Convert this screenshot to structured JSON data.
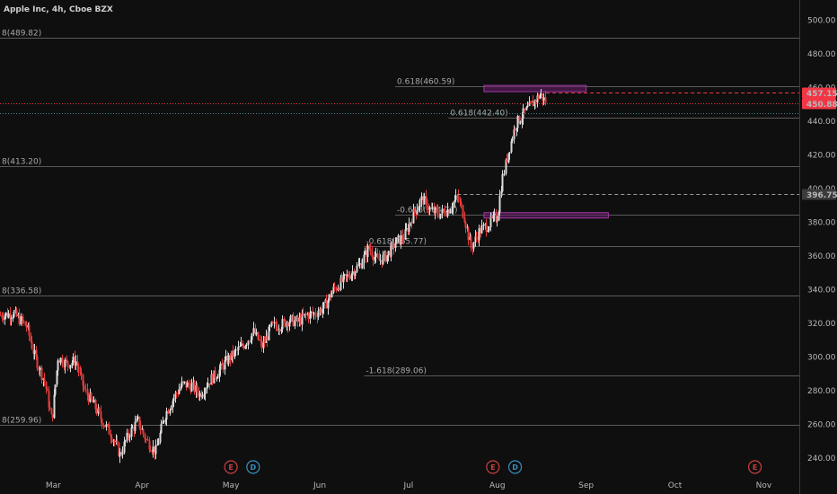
{
  "title": "Apple Inc, 4h, Cboe BZX",
  "colors": {
    "background": "#0f0f0f",
    "grid": "#2a2a2a",
    "up": "#d9d9d9",
    "down": "#e03b3b",
    "fib_line": "#5a5a5a",
    "zone": "#6b1f6e",
    "zone_border": "#a33aa6",
    "price_red": "#f23645",
    "price_gray": "#9a9a9a",
    "earnings": "#c94040",
    "dividend": "#3a8fc2"
  },
  "chart_data": {
    "type": "candlestick",
    "x_axis": {
      "ticks": [
        {
          "label": "Mar",
          "pos": 2.0
        },
        {
          "label": "Apr",
          "pos": 3.0
        },
        {
          "label": "May",
          "pos": 4.0
        },
        {
          "label": "Jun",
          "pos": 5.0
        },
        {
          "label": "Jul",
          "pos": 6.0
        },
        {
          "label": "Aug",
          "pos": 7.0
        },
        {
          "label": "Sep",
          "pos": 8.0
        },
        {
          "label": "Oct",
          "pos": 9.0
        },
        {
          "label": "Nov",
          "pos": 10.0
        }
      ],
      "range": [
        1.4,
        10.4
      ]
    },
    "y_axis": {
      "ticks": [
        "500.00",
        "480.00",
        "460.00",
        "440.00",
        "420.00",
        "400.00",
        "380.00",
        "360.00",
        "340.00",
        "320.00",
        "300.00",
        "280.00",
        "260.00",
        "240.00"
      ],
      "range": [
        230,
        512
      ],
      "side": "right"
    },
    "fib_levels": [
      {
        "label": "8(489.82)",
        "value": 489.82,
        "start": 1.4
      },
      {
        "label": "0.618(460.59)",
        "value": 460.59,
        "start": 5.85
      },
      {
        "label": "0.618(442.40)",
        "value": 442.4,
        "start": 6.45
      },
      {
        "label": "8(413.20)",
        "value": 413.2,
        "start": 1.4
      },
      {
        "label": "-0.618(384.73)",
        "value": 384.73,
        "start": 5.85
      },
      {
        "label": "-0.618(365.77)",
        "value": 365.77,
        "start": 5.5
      },
      {
        "label": "8(336.58)",
        "value": 336.58,
        "start": 1.4
      },
      {
        "label": "-1.618(289.06)",
        "value": 289.06,
        "start": 5.5
      },
      {
        "label": "8(259.96)",
        "value": 259.96,
        "start": 1.4
      }
    ],
    "zones": [
      {
        "x0": 6.85,
        "x1": 8.0,
        "y0": 457.6,
        "y1": 461.3
      },
      {
        "x0": 6.85,
        "x1": 8.25,
        "y0": 382.6,
        "y1": 385.8
      }
    ],
    "price_lines": [
      {
        "value": 457.15,
        "label": "457.15",
        "style": "dashed",
        "color": "price_red",
        "start": 7.55
      },
      {
        "value": 450.88,
        "label": "450.88",
        "style": "dotted",
        "color": "price_red",
        "start": 1.4
      },
      {
        "value": 396.75,
        "label": "396.75",
        "style": "dashed",
        "color": "price_gray",
        "start": 6.55
      }
    ],
    "extra_line": {
      "value": 444.8,
      "style": "dotted",
      "color": "#3d8a8e"
    },
    "events": [
      {
        "type": "E",
        "pos": 4.0
      },
      {
        "type": "D",
        "pos": 4.25
      },
      {
        "type": "E",
        "pos": 6.95
      },
      {
        "type": "D",
        "pos": 7.2
      },
      {
        "type": "E",
        "pos": 9.9
      }
    ],
    "path": [
      [
        1.4,
        325
      ],
      [
        1.55,
        326
      ],
      [
        1.7,
        318
      ],
      [
        1.78,
        302
      ],
      [
        1.9,
        285
      ],
      [
        1.98,
        262
      ],
      [
        2.05,
        300
      ],
      [
        2.15,
        296
      ],
      [
        2.25,
        298
      ],
      [
        2.35,
        280
      ],
      [
        2.45,
        272
      ],
      [
        2.55,
        262
      ],
      [
        2.65,
        254
      ],
      [
        2.75,
        242
      ],
      [
        2.85,
        255
      ],
      [
        2.95,
        262
      ],
      [
        3.05,
        250
      ],
      [
        3.15,
        244
      ],
      [
        3.25,
        265
      ],
      [
        3.35,
        276
      ],
      [
        3.45,
        284
      ],
      [
        3.55,
        283
      ],
      [
        3.65,
        278
      ],
      [
        3.75,
        286
      ],
      [
        3.85,
        291
      ],
      [
        3.95,
        298
      ],
      [
        4.05,
        303
      ],
      [
        4.15,
        308
      ],
      [
        4.25,
        315
      ],
      [
        4.35,
        306
      ],
      [
        4.45,
        318
      ],
      [
        4.55,
        319
      ],
      [
        4.65,
        322
      ],
      [
        4.75,
        321
      ],
      [
        4.85,
        325
      ],
      [
        4.95,
        326
      ],
      [
        5.05,
        330
      ],
      [
        5.15,
        340
      ],
      [
        5.25,
        345
      ],
      [
        5.35,
        350
      ],
      [
        5.45,
        355
      ],
      [
        5.55,
        365
      ],
      [
        5.65,
        357
      ],
      [
        5.75,
        360
      ],
      [
        5.85,
        368
      ],
      [
        5.95,
        372
      ],
      [
        6.05,
        385
      ],
      [
        6.15,
        394
      ],
      [
        6.25,
        387
      ],
      [
        6.35,
        385
      ],
      [
        6.45,
        388
      ],
      [
        6.55,
        395
      ],
      [
        6.62,
        384
      ],
      [
        6.7,
        365
      ],
      [
        6.8,
        375
      ],
      [
        6.9,
        379
      ],
      [
        7.0,
        384
      ],
      [
        7.05,
        405
      ],
      [
        7.12,
        422
      ],
      [
        7.2,
        438
      ],
      [
        7.3,
        445
      ],
      [
        7.4,
        451
      ],
      [
        7.48,
        456
      ],
      [
        7.55,
        451
      ]
    ]
  }
}
